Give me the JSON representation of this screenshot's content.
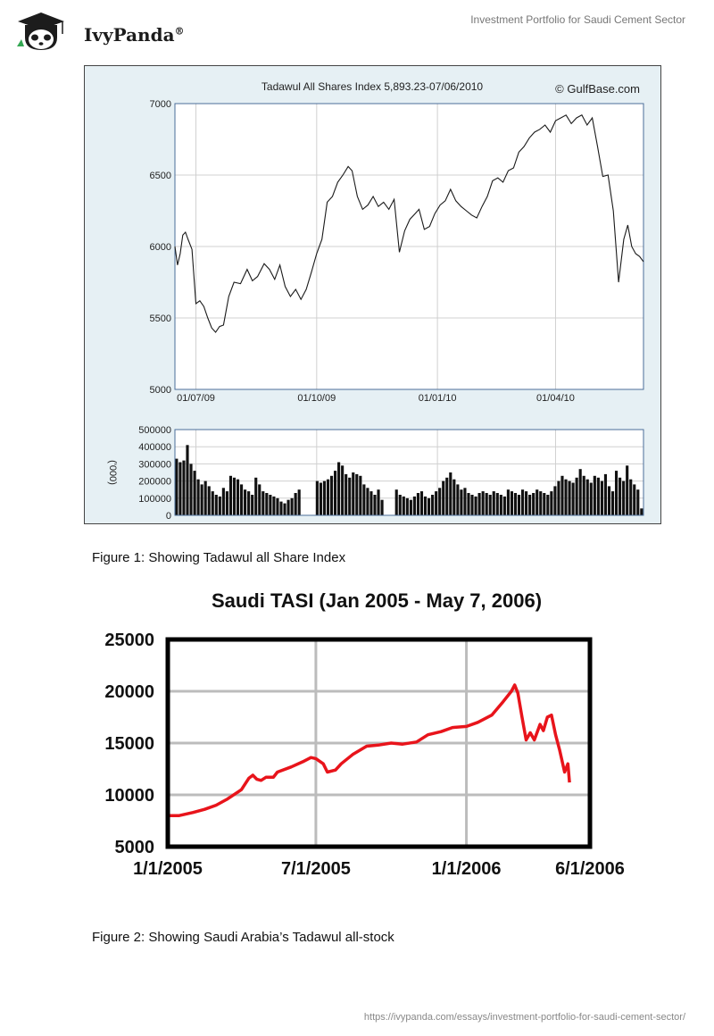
{
  "header": {
    "logo_text": "IvyPanda",
    "logo_mark": "®",
    "doc_title": "Investment Portfolio for Saudi Cement Sector"
  },
  "figure1": {
    "caption": "Figure 1: Showing Tadawul all Share Index",
    "chart_data": {
      "type": "line",
      "title": "Tadawul All Shares Index 5,893.23-07/06/2010",
      "source_label": "© GulfBase.com",
      "x_ticks": [
        "01/07/09",
        "01/10/09",
        "01/01/10",
        "01/04/10"
      ],
      "x_range": [
        "2009-06-15",
        "2010-06-07"
      ],
      "y_ticks": [
        "5000",
        "5500",
        "6000",
        "6500",
        "7000"
      ],
      "ylim": [
        5000,
        7000
      ],
      "grid": true,
      "series": [
        {
          "x": [
            "2009-06-15",
            "2009-06-17",
            "2009-06-19",
            "2009-06-21",
            "2009-06-23",
            "2009-06-25",
            "2009-06-28",
            "2009-07-01",
            "2009-07-04",
            "2009-07-07",
            "2009-07-10",
            "2009-07-13",
            "2009-07-16",
            "2009-07-19",
            "2009-07-22",
            "2009-07-26",
            "2009-07-30",
            "2009-08-04",
            "2009-08-09",
            "2009-08-13",
            "2009-08-17",
            "2009-08-22",
            "2009-08-26",
            "2009-08-30",
            "2009-09-03",
            "2009-09-07",
            "2009-09-11",
            "2009-09-15",
            "2009-09-19",
            "2009-09-23",
            "2009-09-27",
            "2009-10-01",
            "2009-10-05",
            "2009-10-09",
            "2009-10-13",
            "2009-10-17",
            "2009-10-21",
            "2009-10-25",
            "2009-10-28",
            "2009-11-01",
            "2009-11-05",
            "2009-11-09",
            "2009-11-13",
            "2009-11-17",
            "2009-11-21",
            "2009-11-25",
            "2009-11-29",
            "2009-12-03",
            "2009-12-07",
            "2009-12-11",
            "2009-12-15",
            "2009-12-18",
            "2009-12-22",
            "2009-12-26",
            "2009-12-30",
            "2010-01-03",
            "2010-01-07",
            "2010-01-11",
            "2010-01-15",
            "2010-01-19",
            "2010-01-23",
            "2010-01-27",
            "2010-01-31",
            "2010-02-04",
            "2010-02-08",
            "2010-02-12",
            "2010-02-16",
            "2010-02-20",
            "2010-02-24",
            "2010-02-28",
            "2010-03-04",
            "2010-03-08",
            "2010-03-12",
            "2010-03-16",
            "2010-03-20",
            "2010-03-24",
            "2010-03-28",
            "2010-04-01",
            "2010-04-05",
            "2010-04-09",
            "2010-04-13",
            "2010-04-17",
            "2010-04-21",
            "2010-04-25",
            "2010-04-29",
            "2010-05-03",
            "2010-05-07",
            "2010-05-11",
            "2010-05-15",
            "2010-05-19",
            "2010-05-23",
            "2010-05-26",
            "2010-05-29",
            "2010-06-01",
            "2010-06-04",
            "2010-06-07"
          ],
          "y": [
            6000,
            5870,
            5950,
            6080,
            6100,
            6050,
            5980,
            5600,
            5620,
            5580,
            5500,
            5430,
            5400,
            5440,
            5450,
            5650,
            5750,
            5740,
            5840,
            5760,
            5790,
            5880,
            5840,
            5770,
            5870,
            5720,
            5650,
            5700,
            5630,
            5700,
            5820,
            5950,
            6050,
            6310,
            6350,
            6450,
            6500,
            6560,
            6530,
            6350,
            6260,
            6290,
            6350,
            6280,
            6310,
            6260,
            6330,
            5960,
            6110,
            6190,
            6230,
            6260,
            6120,
            6140,
            6230,
            6290,
            6320,
            6400,
            6320,
            6280,
            6250,
            6220,
            6200,
            6280,
            6350,
            6460,
            6480,
            6450,
            6530,
            6550,
            6660,
            6700,
            6760,
            6800,
            6820,
            6850,
            6800,
            6880,
            6900,
            6920,
            6860,
            6900,
            6920,
            6850,
            6900,
            6700,
            6490,
            6500,
            6250,
            5750,
            6050,
            6150,
            6000,
            5950,
            5930,
            5893
          ]
        }
      ]
    },
    "volume_data": {
      "type": "bar",
      "ylabel": "('000)",
      "y_ticks": [
        "0",
        "100000",
        "200000",
        "300000",
        "400000",
        "500000"
      ],
      "ylim": [
        0,
        500000
      ],
      "values": [
        330000,
        310000,
        320000,
        410000,
        300000,
        260000,
        210000,
        180000,
        200000,
        170000,
        140000,
        120000,
        110000,
        160000,
        140000,
        230000,
        220000,
        210000,
        180000,
        150000,
        140000,
        120000,
        220000,
        180000,
        140000,
        130000,
        120000,
        110000,
        100000,
        80000,
        70000,
        90000,
        100000,
        130000,
        150000,
        0,
        0,
        0,
        0,
        200000,
        190000,
        200000,
        210000,
        230000,
        260000,
        310000,
        290000,
        240000,
        220000,
        250000,
        240000,
        230000,
        180000,
        160000,
        140000,
        120000,
        150000,
        90000,
        0,
        0,
        0,
        150000,
        120000,
        110000,
        100000,
        90000,
        110000,
        130000,
        140000,
        110000,
        100000,
        120000,
        140000,
        160000,
        200000,
        220000,
        250000,
        210000,
        180000,
        150000,
        160000,
        130000,
        120000,
        110000,
        130000,
        140000,
        130000,
        120000,
        140000,
        130000,
        120000,
        110000,
        150000,
        140000,
        130000,
        120000,
        150000,
        140000,
        120000,
        130000,
        150000,
        140000,
        130000,
        120000,
        140000,
        170000,
        200000,
        230000,
        210000,
        200000,
        190000,
        220000,
        270000,
        230000,
        210000,
        190000,
        230000,
        220000,
        200000,
        240000,
        170000,
        140000,
        260000,
        220000,
        200000,
        290000,
        210000,
        180000,
        150000,
        40000
      ]
    }
  },
  "figure2": {
    "caption": "Figure 2: Showing Saudi Arabia’s Tadawul all-stock",
    "chart_data": {
      "type": "line",
      "title": "Saudi TASI (Jan 2005 - May 7, 2006)",
      "x_ticks": [
        "1/1/2005",
        "7/1/2005",
        "1/1/2006",
        "6/1/2006"
      ],
      "x_range": [
        "2005-01-01",
        "2006-06-01"
      ],
      "y_ticks": [
        "5000",
        "10000",
        "15000",
        "20000",
        "25000"
      ],
      "ylim": [
        5000,
        25000
      ],
      "grid": true,
      "line_color": "#e8141b",
      "series": [
        {
          "x": [
            "2005-01-01",
            "2005-01-15",
            "2005-02-01",
            "2005-02-15",
            "2005-03-01",
            "2005-03-15",
            "2005-04-01",
            "2005-04-10",
            "2005-04-15",
            "2005-04-20",
            "2005-04-25",
            "2005-05-01",
            "2005-05-10",
            "2005-05-15",
            "2005-06-01",
            "2005-06-15",
            "2005-06-25",
            "2005-07-01",
            "2005-07-10",
            "2005-07-15",
            "2005-07-25",
            "2005-08-01",
            "2005-08-15",
            "2005-09-01",
            "2005-09-15",
            "2005-10-01",
            "2005-10-15",
            "2005-11-01",
            "2005-11-15",
            "2005-12-01",
            "2005-12-15",
            "2006-01-01",
            "2006-01-15",
            "2006-02-01",
            "2006-02-15",
            "2006-02-25",
            "2006-03-01",
            "2006-03-05",
            "2006-03-10",
            "2006-03-15",
            "2006-03-20",
            "2006-03-25",
            "2006-04-01",
            "2006-04-05",
            "2006-04-10",
            "2006-04-15",
            "2006-04-20",
            "2006-04-25",
            "2006-05-01",
            "2006-05-05",
            "2006-05-07"
          ],
          "y": [
            8000,
            8000,
            8300,
            8600,
            9000,
            9600,
            10500,
            11600,
            11900,
            11500,
            11400,
            11700,
            11700,
            12200,
            12700,
            13200,
            13600,
            13500,
            13000,
            12200,
            12400,
            13000,
            13900,
            14700,
            14800,
            15000,
            14900,
            15100,
            15800,
            16100,
            16500,
            16600,
            17000,
            17700,
            19000,
            20000,
            20600,
            19800,
            17500,
            15300,
            16000,
            15300,
            16800,
            16200,
            17500,
            17700,
            15800,
            14300,
            12200,
            13000,
            11200
          ]
        }
      ]
    }
  },
  "footer": {
    "url": "https://ivypanda.com/essays/investment-portfolio-for-saudi-cement-sector/"
  }
}
